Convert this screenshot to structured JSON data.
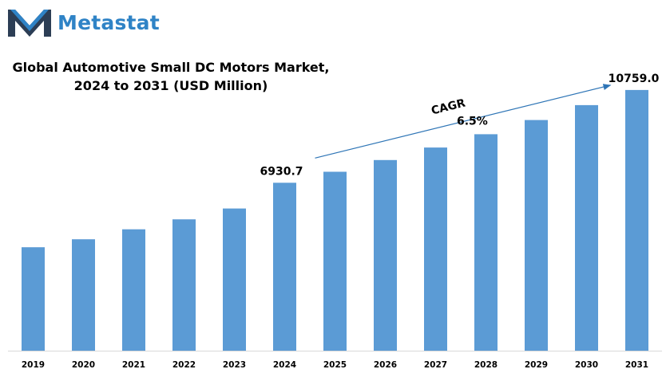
{
  "brand": {
    "name": "Metastat",
    "color": "#2f83c6",
    "logo_icon": "m-logo-icon"
  },
  "chart_data": {
    "type": "bar",
    "title": "Global Automotive Small DC Motors Market,",
    "subtitle": "2024 to 2031 (USD Million)",
    "categories": [
      "2019",
      "2020",
      "2021",
      "2022",
      "2023",
      "2024",
      "2025",
      "2026",
      "2027",
      "2028",
      "2029",
      "2030",
      "2031"
    ],
    "series": [
      {
        "values": [
          4270,
          4600,
          5010,
          5420,
          5870,
          6930.7,
          7385,
          7870,
          8385,
          8935,
          9520,
          10135,
          10759.0
        ],
        "color": "#5b9bd5"
      }
    ],
    "data_labels": [
      {
        "category": "2024",
        "text": "6930.7"
      },
      {
        "category": "2031",
        "text": "10759.0"
      }
    ],
    "annotation": {
      "label": "CAGR",
      "value": "6.5%",
      "from": "2024",
      "to": "2031",
      "arrow_color": "#2e75b6"
    },
    "ylim": [
      0,
      11000
    ],
    "grid": false,
    "legend": "none"
  }
}
